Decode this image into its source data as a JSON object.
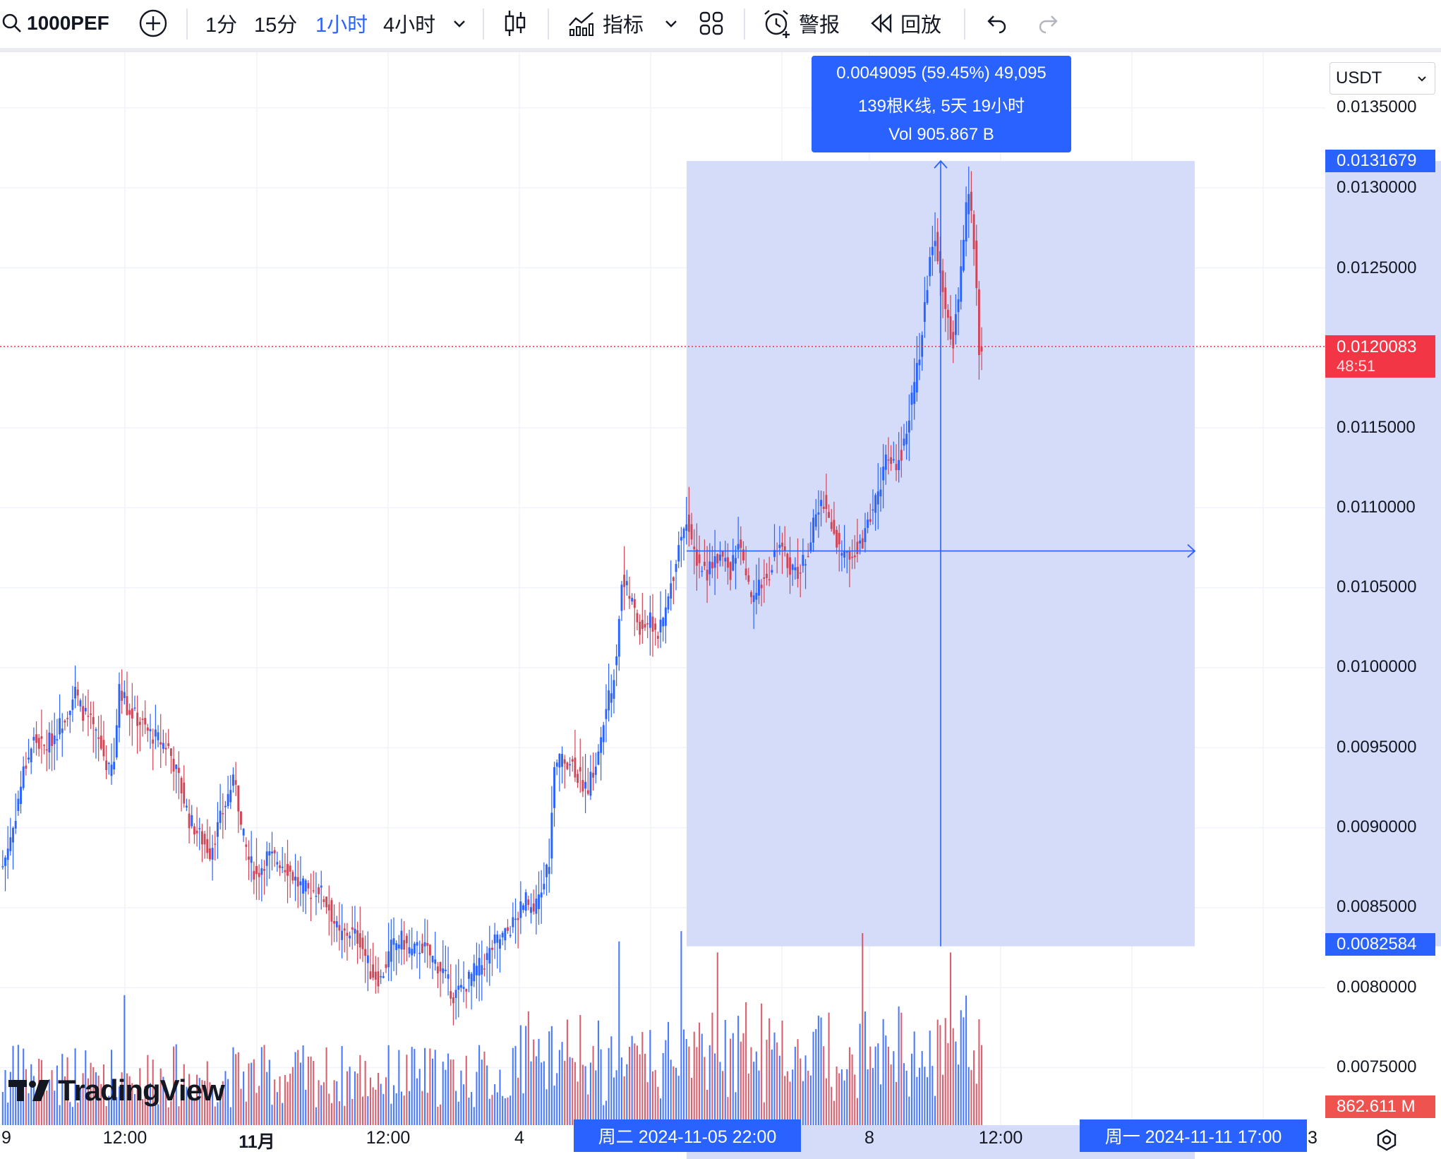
{
  "toolbar": {
    "symbol": "1000PEF",
    "intervals": [
      "1分",
      "15分",
      "1小时",
      "4小时"
    ],
    "active_interval": "1小时",
    "indicators_label": "指标",
    "alert_label": "警报",
    "replay_label": "回放",
    "icons": [
      "search-icon",
      "add-circle-icon",
      "chevron-down-icon",
      "candlestick-icon",
      "indicators-icon",
      "chevron-down-icon",
      "layout-grid-icon",
      "alarm-icon",
      "replay-icon",
      "undo-icon",
      "redo-icon"
    ]
  },
  "currency_select": "USDT",
  "price_axis": {
    "labels": [
      "0.0135000",
      "0.0130000",
      "0.0125000",
      "0.0115000",
      "0.0110000",
      "0.0105000",
      "0.0100000",
      "0.0095000",
      "0.0090000",
      "0.0085000",
      "0.0080000",
      "0.0075000"
    ],
    "high_tag": "0.0131679",
    "current_price_tag": "0.0120083",
    "countdown": "48:51",
    "low_tag": "0.0082584",
    "volume_tag": "862.611 M"
  },
  "measure": {
    "line1": "0.0049095 (59.45%) 49,095",
    "line2": "139根K线, 5天 19小时",
    "line3": "Vol 905.867 B"
  },
  "time_axis": {
    "labels": [
      "12:00",
      "11月",
      "12:00",
      "4",
      "8",
      "12:00"
    ],
    "edge_left": "9",
    "edge_right": "3",
    "start_tag": "周二 2024-11-05   22:00",
    "end_tag": "周一 2024-11-11   17:00"
  },
  "logo_text": "TradingView",
  "colors": {
    "up": "#2962ff",
    "down": "#d24455",
    "accent": "#2962ff",
    "price_line": "#f23645",
    "measure_fill": "#d5dcfa"
  },
  "chart_data": {
    "type": "candlestick",
    "symbol": "1000PEF",
    "quote": "USDT",
    "ylim": [
      0.007,
      0.0138
    ],
    "y_ticks": [
      0.0075,
      0.008,
      0.0085,
      0.009,
      0.0095,
      0.01,
      0.0105,
      0.011,
      0.0115,
      0.0125,
      0.013,
      0.0135
    ],
    "grid": true,
    "close_path": [
      [
        0,
        0.00876
      ],
      [
        4,
        0.009
      ],
      [
        8,
        0.00935
      ],
      [
        12,
        0.00955
      ],
      [
        16,
        0.0095
      ],
      [
        20,
        0.00958
      ],
      [
        24,
        0.0097
      ],
      [
        28,
        0.00985
      ],
      [
        30,
        0.00975
      ],
      [
        34,
        0.00965
      ],
      [
        38,
        0.0095
      ],
      [
        41,
        0.00935
      ],
      [
        43,
        0.0094
      ],
      [
        45,
        0.0099
      ],
      [
        48,
        0.00975
      ],
      [
        52,
        0.00968
      ],
      [
        56,
        0.0096
      ],
      [
        60,
        0.00955
      ],
      [
        64,
        0.0095
      ],
      [
        68,
        0.0093
      ],
      [
        72,
        0.00905
      ],
      [
        76,
        0.00895
      ],
      [
        80,
        0.00885
      ],
      [
        84,
        0.00905
      ],
      [
        88,
        0.00925
      ],
      [
        90,
        0.0093
      ],
      [
        92,
        0.009
      ],
      [
        95,
        0.0088
      ],
      [
        98,
        0.0087
      ],
      [
        102,
        0.00882
      ],
      [
        106,
        0.0088
      ],
      [
        110,
        0.00875
      ],
      [
        114,
        0.00865
      ],
      [
        118,
        0.0086
      ],
      [
        122,
        0.00862
      ],
      [
        126,
        0.0085
      ],
      [
        130,
        0.00832
      ],
      [
        134,
        0.00835
      ],
      [
        138,
        0.0083
      ],
      [
        142,
        0.0081
      ],
      [
        146,
        0.00805
      ],
      [
        150,
        0.00825
      ],
      [
        154,
        0.0083
      ],
      [
        158,
        0.00822
      ],
      [
        162,
        0.00826
      ],
      [
        166,
        0.00818
      ],
      [
        170,
        0.0081
      ],
      [
        174,
        0.00795
      ],
      [
        178,
        0.008
      ],
      [
        182,
        0.0081
      ],
      [
        186,
        0.00816
      ],
      [
        190,
        0.00828
      ],
      [
        194,
        0.00833
      ],
      [
        198,
        0.00842
      ],
      [
        202,
        0.00855
      ],
      [
        205,
        0.00845
      ],
      [
        208,
        0.0086
      ],
      [
        211,
        0.0088
      ],
      [
        213,
        0.00935
      ],
      [
        216,
        0.00945
      ],
      [
        220,
        0.0094
      ],
      [
        223,
        0.0093
      ],
      [
        226,
        0.00925
      ],
      [
        230,
        0.00945
      ],
      [
        233,
        0.00975
      ],
      [
        235,
        0.00985
      ],
      [
        237,
        0.0101
      ],
      [
        239,
        0.01055
      ],
      [
        242,
        0.01045
      ],
      [
        246,
        0.01025
      ],
      [
        250,
        0.0103
      ],
      [
        253,
        0.0102
      ],
      [
        256,
        0.01035
      ],
      [
        259,
        0.0106
      ],
      [
        262,
        0.01085
      ],
      [
        264,
        0.01095
      ],
      [
        266,
        0.01075
      ],
      [
        269,
        0.01065
      ],
      [
        272,
        0.0106
      ],
      [
        275,
        0.0107
      ],
      [
        278,
        0.01068
      ],
      [
        281,
        0.0106
      ],
      [
        284,
        0.01078
      ],
      [
        287,
        0.01055
      ],
      [
        290,
        0.0104
      ],
      [
        293,
        0.01055
      ],
      [
        296,
        0.0106
      ],
      [
        299,
        0.01078
      ],
      [
        302,
        0.01068
      ],
      [
        305,
        0.01062
      ],
      [
        308,
        0.0106
      ],
      [
        311,
        0.01075
      ],
      [
        314,
        0.01095
      ],
      [
        317,
        0.01105
      ],
      [
        320,
        0.01088
      ],
      [
        323,
        0.01075
      ],
      [
        326,
        0.01068
      ],
      [
        329,
        0.01075
      ],
      [
        332,
        0.0108
      ],
      [
        335,
        0.01095
      ],
      [
        338,
        0.0111
      ],
      [
        341,
        0.0113
      ],
      [
        344,
        0.01125
      ],
      [
        347,
        0.01135
      ],
      [
        350,
        0.0116
      ],
      [
        353,
        0.01185
      ],
      [
        356,
        0.01225
      ],
      [
        358,
        0.01255
      ],
      [
        360,
        0.0127
      ],
      [
        362,
        0.0125
      ],
      [
        365,
        0.01215
      ],
      [
        367,
        0.01205
      ],
      [
        369,
        0.0123
      ],
      [
        371,
        0.0127
      ],
      [
        373,
        0.013
      ],
      [
        375,
        0.01265
      ],
      [
        377,
        0.012
      ],
      [
        378,
        0.01201
      ]
    ]
  }
}
